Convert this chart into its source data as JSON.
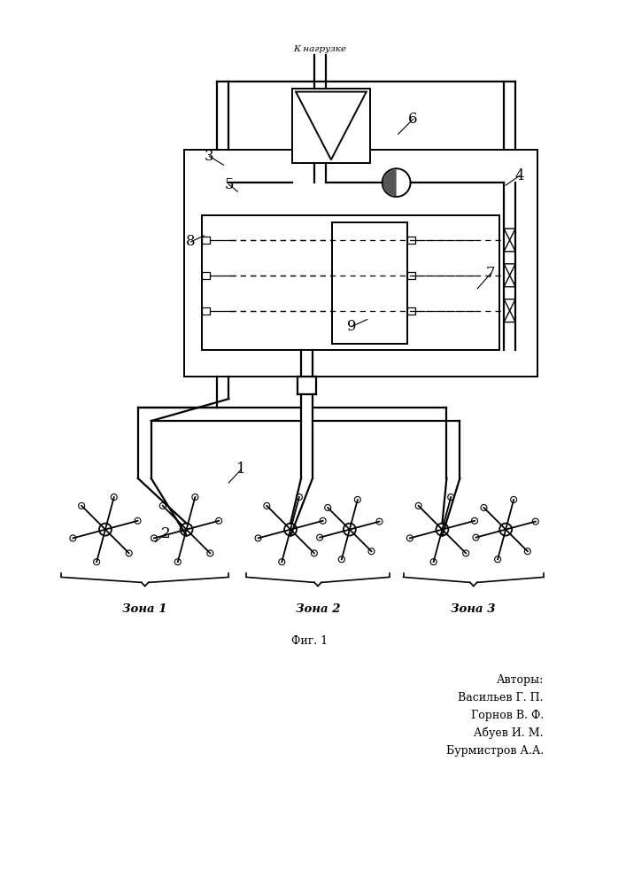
{
  "bg_color": "#ffffff",
  "fig_caption": "Фиг. 1",
  "authors_label": "Авторы:",
  "authors": [
    "Васильев Г. П.",
    "Горнов В. Ф.",
    "Абуев И. М.",
    "Бурмистров А.А."
  ],
  "zone_labels": [
    "Зона 1",
    "Зона 2",
    "Зона 3"
  ],
  "label_k_nagruzke": "К нагрузке"
}
